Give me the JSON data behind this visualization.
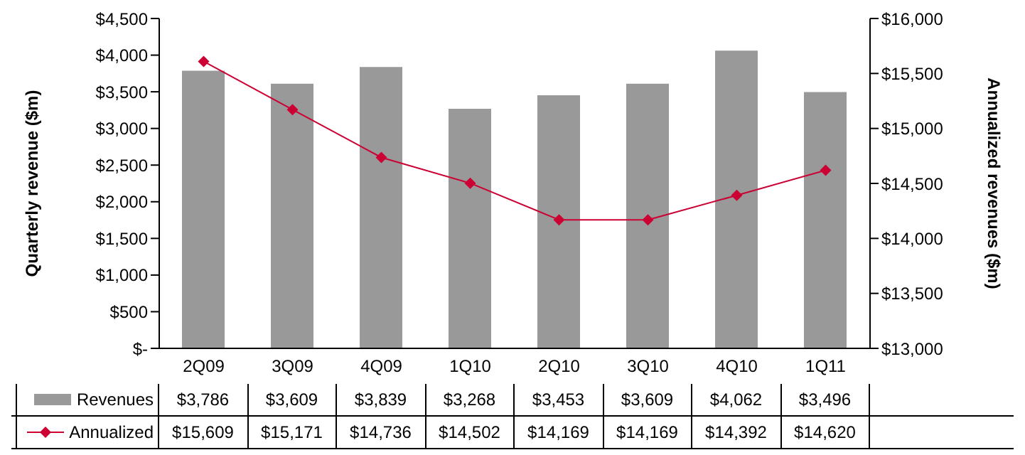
{
  "chart_data": {
    "type": "bar",
    "categories": [
      "2Q09",
      "3Q09",
      "4Q09",
      "1Q10",
      "2Q10",
      "3Q10",
      "4Q10",
      "1Q11"
    ],
    "ylabel": "Quarterly revenue ($m)",
    "y2label": "Annualized revenues ($m)",
    "ylim": [
      0,
      4500
    ],
    "yticks": [
      {
        "value": 0,
        "label": "$-"
      },
      {
        "value": 500,
        "label": "$500"
      },
      {
        "value": 1000,
        "label": "$1,000"
      },
      {
        "value": 1500,
        "label": "$1,500"
      },
      {
        "value": 2000,
        "label": "$2,000"
      },
      {
        "value": 2500,
        "label": "$2,500"
      },
      {
        "value": 3000,
        "label": "$3,000"
      },
      {
        "value": 3500,
        "label": "$3,500"
      },
      {
        "value": 4000,
        "label": "$4,000"
      },
      {
        "value": 4500,
        "label": "$4,500"
      }
    ],
    "y2lim": [
      13000,
      16000
    ],
    "y2ticks": [
      {
        "value": 13000,
        "label": "$13,000"
      },
      {
        "value": 13500,
        "label": "$13,500"
      },
      {
        "value": 14000,
        "label": "$14,000"
      },
      {
        "value": 14500,
        "label": "$14,500"
      },
      {
        "value": 15000,
        "label": "$15,000"
      },
      {
        "value": 15500,
        "label": "$15,500"
      },
      {
        "value": 16000,
        "label": "$16,000"
      }
    ],
    "series": [
      {
        "name": "Revenues",
        "color": "#999999",
        "values": [
          3786,
          3609,
          3839,
          3268,
          3453,
          3609,
          4062,
          3496
        ],
        "value_labels": [
          "$3,786",
          "$3,609",
          "$3,839",
          "$3,268",
          "$3,453",
          "$3,609",
          "$4,062",
          "$3,496"
        ]
      },
      {
        "name": "Annualized",
        "type": "line",
        "axis": "y2",
        "color": "#cc0033",
        "marker": "diamond",
        "values": [
          15609,
          15171,
          14736,
          14502,
          14169,
          14169,
          14392,
          14620
        ],
        "value_labels": [
          "$15,609",
          "$15,171",
          "$14,736",
          "$14,502",
          "$14,169",
          "$14,169",
          "$14,392",
          "$14,620"
        ]
      }
    ],
    "grid": false,
    "legend": "bottom"
  }
}
